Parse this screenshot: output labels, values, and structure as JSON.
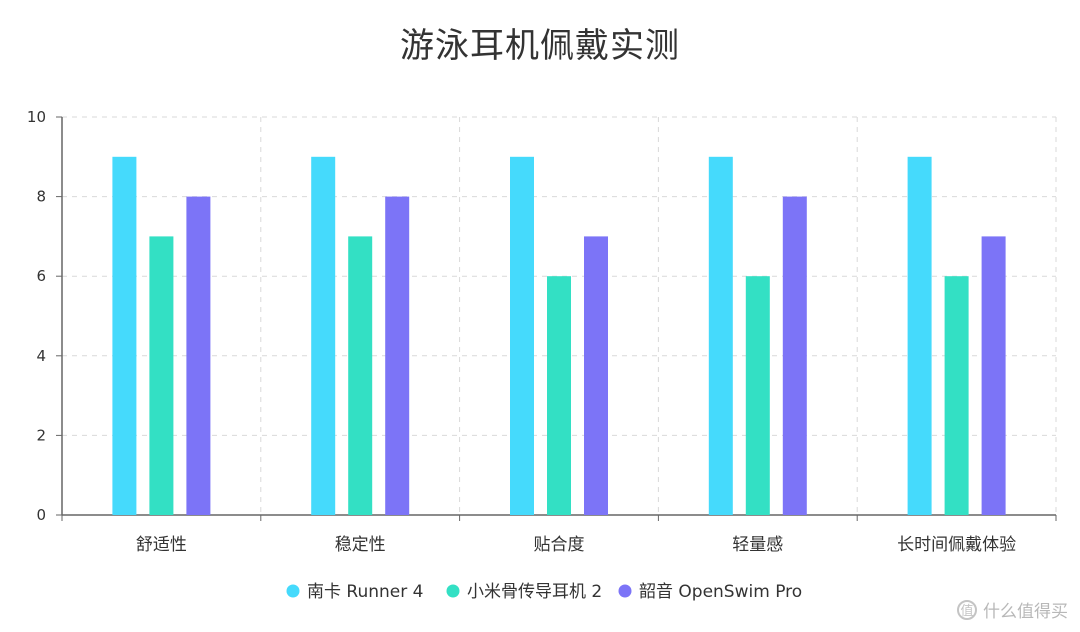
{
  "watermark": {
    "text": "什么值得买",
    "icon": "value-icon"
  },
  "colors": {
    "axis": "#666666",
    "grid": "#d9d9d9"
  },
  "chart_data": {
    "type": "bar",
    "title": "游泳耳机佩戴实测",
    "xlabel": "",
    "ylabel": "",
    "ylim": [
      0,
      10
    ],
    "yticks": [
      0,
      2,
      4,
      6,
      8,
      10
    ],
    "categories": [
      "舒适性",
      "稳定性",
      "贴合度",
      "轻量感",
      "长时间佩戴体验"
    ],
    "series": [
      {
        "name": "南卡 Runner 4",
        "values": [
          9,
          9,
          9,
          9,
          9
        ],
        "color": "#45dafc"
      },
      {
        "name": "小米骨传导耳机 2",
        "values": [
          7,
          7,
          6,
          6,
          6
        ],
        "color": "#33e0c4"
      },
      {
        "name": "韶音 OpenSwim Pro",
        "values": [
          8,
          8,
          7,
          8,
          7
        ],
        "color": "#7c74f7"
      }
    ],
    "grid": true,
    "legend": "bottom-center"
  }
}
